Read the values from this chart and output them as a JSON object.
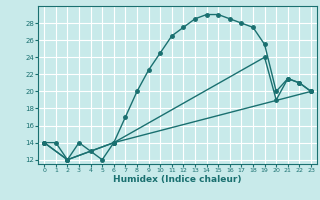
{
  "xlabel": "Humidex (Indice chaleur)",
  "bg_color": "#c8eaea",
  "line_color": "#1a7070",
  "grid_color": "#ffffff",
  "xlim": [
    -0.5,
    23.5
  ],
  "ylim": [
    11.5,
    30
  ],
  "xticks": [
    0,
    1,
    2,
    3,
    4,
    5,
    6,
    7,
    8,
    9,
    10,
    11,
    12,
    13,
    14,
    15,
    16,
    17,
    18,
    19,
    20,
    21,
    22,
    23
  ],
  "yticks": [
    12,
    14,
    16,
    18,
    20,
    22,
    24,
    26,
    28
  ],
  "line1_x": [
    0,
    1,
    2,
    3,
    4,
    5,
    6,
    7,
    8,
    9,
    10,
    11,
    12,
    13,
    14,
    15,
    16,
    17,
    18,
    19,
    20,
    21,
    22,
    23
  ],
  "line1_y": [
    14,
    14,
    12,
    14,
    13,
    12,
    14,
    17,
    20,
    22.5,
    24.5,
    26.5,
    27.5,
    28.5,
    29,
    29,
    28.5,
    28,
    27.5,
    25.5,
    20,
    21.5,
    21,
    20
  ],
  "line2_x": [
    0,
    2,
    6,
    19,
    20,
    21,
    22,
    23
  ],
  "line2_y": [
    14,
    12,
    14,
    24,
    19,
    21.5,
    21,
    20
  ],
  "line3_x": [
    0,
    2,
    6,
    23
  ],
  "line3_y": [
    14,
    12,
    14,
    20
  ],
  "marker": "o",
  "marker_size": 2.5,
  "line_width": 1.0
}
